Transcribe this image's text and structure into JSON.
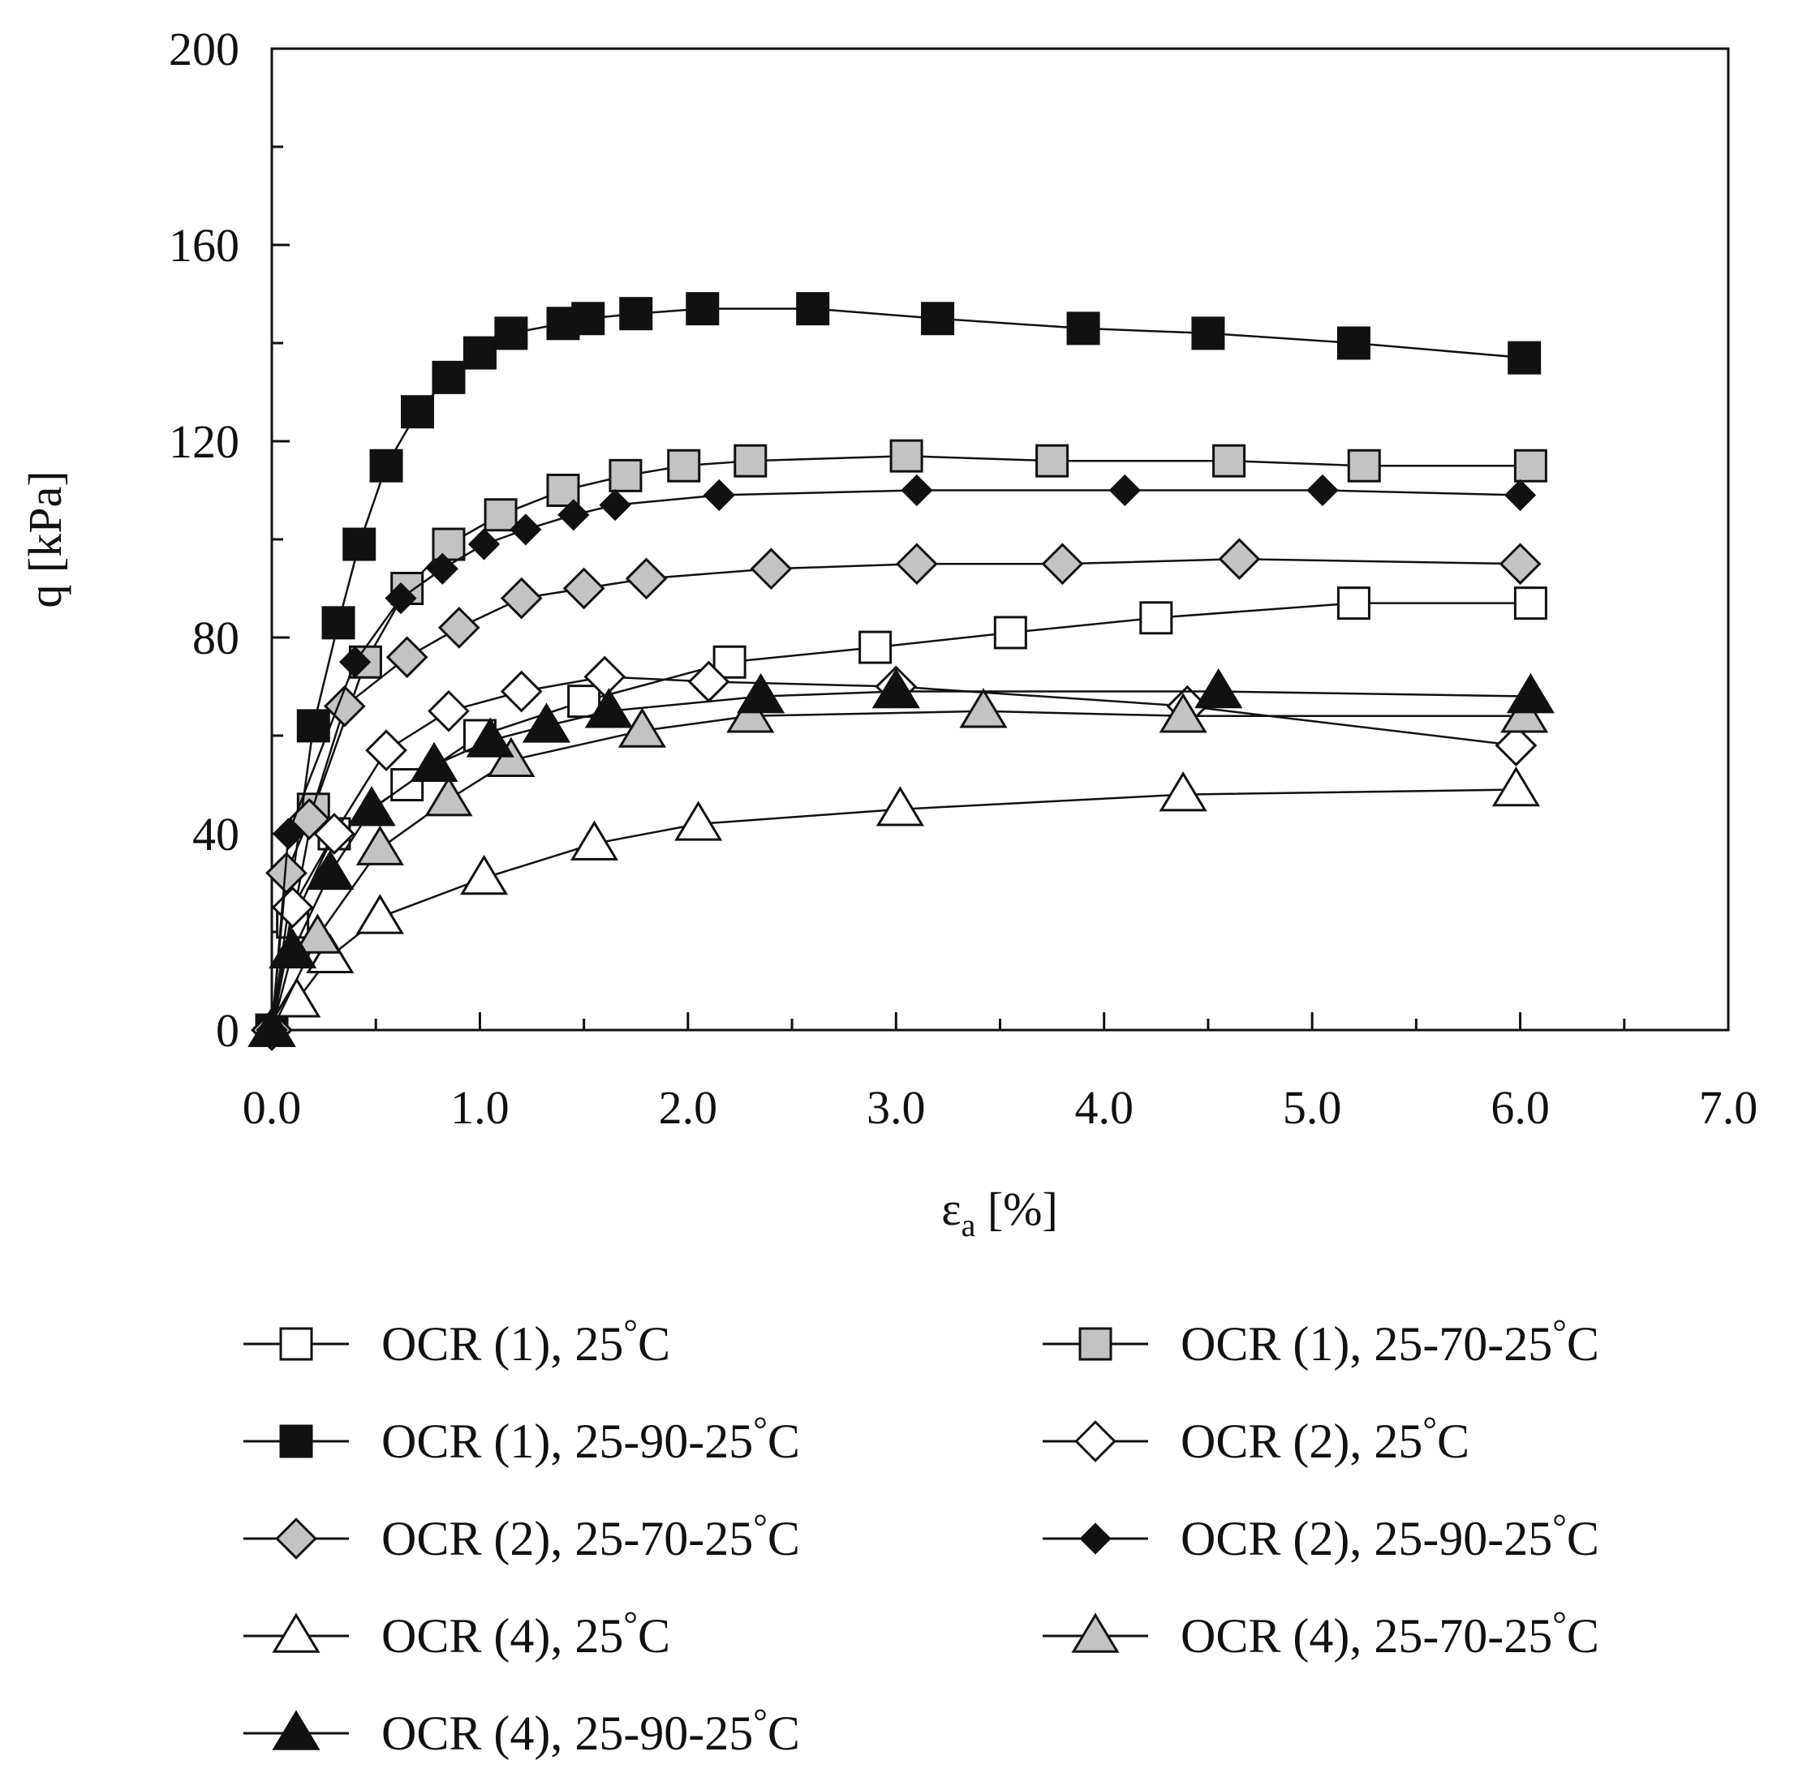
{
  "chart_data": {
    "type": "line",
    "xlabel": "εa [%]",
    "xlabel_main": "ε",
    "xlabel_sub": "a",
    "xlabel_rest": " [%]",
    "ylabel": "q [kPa]",
    "xlim": [
      0,
      7
    ],
    "ylim": [
      0,
      200
    ],
    "x_ticks": [
      0,
      1,
      2,
      3,
      4,
      5,
      6,
      7
    ],
    "x_tick_labels": [
      "0.0",
      "1.0",
      "2.0",
      "3.0",
      "4.0",
      "5.0",
      "6.0",
      "7.0"
    ],
    "y_ticks": [
      0,
      40,
      80,
      120,
      160,
      200
    ],
    "y_tick_labels": [
      "0",
      "40",
      "80",
      "120",
      "160",
      "200"
    ],
    "grid": false,
    "legend_placement": "bottom",
    "series": [
      {
        "name": "OCR (1), 25°C",
        "label_main": "OCR (1), 25",
        "marker": "square",
        "fill": "#ffffff",
        "x": [
          0,
          0.1,
          0.3,
          0.65,
          1.0,
          1.5,
          2.2,
          2.9,
          3.55,
          4.25,
          5.2,
          6.05
        ],
        "y": [
          0,
          22,
          40,
          50,
          60,
          67,
          75,
          78,
          81,
          84,
          87,
          87
        ]
      },
      {
        "name": "OCR (1), 25-70-25°C",
        "label_main": "OCR (1), 25-70-25",
        "marker": "square",
        "fill": "#c3c3c3",
        "x": [
          0,
          0.2,
          0.45,
          0.65,
          0.85,
          1.1,
          1.4,
          1.7,
          1.98,
          2.3,
          3.05,
          3.75,
          4.6,
          5.25,
          6.05
        ],
        "y": [
          0,
          45,
          75,
          90,
          99,
          105,
          110,
          113,
          115,
          116,
          117,
          116,
          116,
          115,
          115
        ]
      },
      {
        "name": "OCR (1), 25-90-25°C",
        "label_main": "OCR (1), 25-90-25",
        "marker": "square",
        "fill": "#111111",
        "x": [
          0,
          0.2,
          0.32,
          0.42,
          0.55,
          0.7,
          0.85,
          1.0,
          1.15,
          1.4,
          1.52,
          1.75,
          2.07,
          2.6,
          3.2,
          3.9,
          4.5,
          5.2,
          6.02
        ],
        "y": [
          0,
          62,
          83,
          99,
          115,
          126,
          133,
          138,
          142,
          144,
          145,
          146,
          147,
          147,
          145,
          143,
          142,
          140,
          137
        ]
      },
      {
        "name": "OCR (2), 25°C",
        "label_main": "OCR (2), 25",
        "marker": "diamond",
        "fill": "#ffffff",
        "x": [
          0,
          0.1,
          0.3,
          0.55,
          0.85,
          1.2,
          1.6,
          2.1,
          3.0,
          4.4,
          5.98
        ],
        "y": [
          0,
          25,
          40,
          57,
          65,
          69,
          72,
          71,
          70,
          66,
          58
        ]
      },
      {
        "name": "OCR (2), 25-70-25°C",
        "label_main": "OCR (2), 25-70-25",
        "marker": "diamond",
        "fill": "#c3c3c3",
        "x": [
          0,
          0.07,
          0.18,
          0.35,
          0.65,
          0.9,
          1.2,
          1.5,
          1.8,
          2.4,
          3.1,
          3.8,
          4.65,
          6.0
        ],
        "y": [
          0,
          32,
          43,
          66,
          76,
          82,
          88,
          90,
          92,
          94,
          95,
          95,
          96,
          95
        ]
      },
      {
        "name": "OCR (2), 25-90-25°C",
        "label_main": "OCR (2), 25-90-25",
        "marker": "diamond",
        "fill": "#111111",
        "x": [
          0,
          0.08,
          0.4,
          0.62,
          0.82,
          1.02,
          1.22,
          1.45,
          1.65,
          2.15,
          3.1,
          4.1,
          5.05,
          6.0
        ],
        "y": [
          0,
          40,
          75,
          88,
          94,
          99,
          102,
          105,
          107,
          109,
          110,
          110,
          110,
          109
        ]
      },
      {
        "name": "OCR (4), 25°C",
        "label_main": "OCR (4), 25",
        "marker": "triangle",
        "fill": "#ffffff",
        "x": [
          0,
          0.12,
          0.28,
          0.52,
          1.02,
          1.55,
          2.05,
          3.02,
          4.38,
          5.98
        ],
        "y": [
          0,
          6,
          15,
          23,
          31,
          38,
          42,
          45,
          48,
          49
        ]
      },
      {
        "name": "OCR (4), 25-70-25°C",
        "label_main": "OCR (4), 25-70-25",
        "marker": "triangle",
        "fill": "#c3c3c3",
        "x": [
          0,
          0.22,
          0.52,
          0.85,
          1.15,
          1.78,
          2.3,
          3.42,
          4.38,
          6.02
        ],
        "y": [
          0,
          19,
          37,
          47,
          55,
          61,
          64,
          65,
          64,
          64
        ]
      },
      {
        "name": "OCR (4), 25-90-25°C",
        "label_main": "OCR (4), 25-90-25",
        "marker": "triangle",
        "fill": "#111111",
        "x": [
          0,
          0.1,
          0.28,
          0.48,
          0.78,
          1.05,
          1.32,
          1.62,
          2.35,
          3.0,
          4.55,
          6.05
        ],
        "y": [
          0,
          16,
          32,
          45,
          54,
          59,
          62,
          65,
          68,
          69,
          69,
          68
        ]
      }
    ]
  }
}
